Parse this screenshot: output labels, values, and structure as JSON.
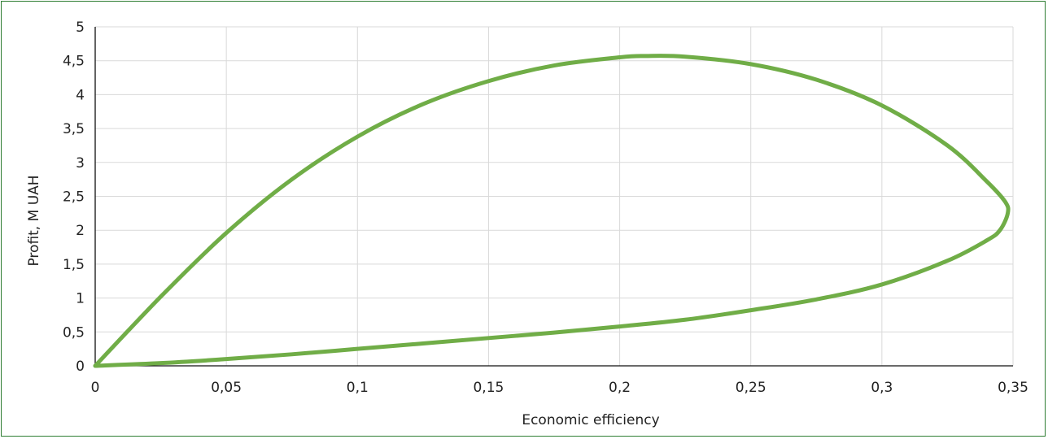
{
  "chart_data": {
    "type": "line",
    "title": "",
    "xlabel": "Economic efficiency",
    "ylabel": "Profit, M UAH",
    "xlim": [
      0,
      0.35
    ],
    "ylim": [
      0,
      5
    ],
    "x_ticks": [
      "0",
      "0,05",
      "0,1",
      "0,15",
      "0,2",
      "0,25",
      "0,3",
      "0,35"
    ],
    "y_ticks": [
      "0",
      "0,5",
      "1",
      "1,5",
      "2",
      "2,5",
      "3",
      "3,5",
      "4",
      "4,5",
      "5"
    ],
    "grid": true,
    "legend": "none",
    "line_color": "#70ad47",
    "series": [
      {
        "x": [
          0,
          0.025,
          0.05,
          0.075,
          0.1,
          0.125,
          0.15,
          0.175,
          0.2,
          0.21,
          0.225,
          0.25,
          0.275,
          0.3,
          0.325,
          0.34,
          0.347,
          0.348,
          0.345,
          0.34,
          0.325,
          0.3,
          0.275,
          0.25,
          0.225,
          0.2,
          0.175,
          0.15,
          0.125,
          0.1,
          0.075,
          0.05,
          0.025,
          0
        ],
        "y": [
          0,
          1.02,
          1.96,
          2.75,
          3.38,
          3.86,
          4.2,
          4.43,
          4.55,
          4.57,
          4.56,
          4.45,
          4.22,
          3.84,
          3.25,
          2.72,
          2.42,
          2.25,
          2.0,
          1.85,
          1.55,
          1.2,
          0.98,
          0.82,
          0.68,
          0.58,
          0.49,
          0.41,
          0.33,
          0.25,
          0.17,
          0.1,
          0.04,
          0
        ]
      }
    ]
  }
}
